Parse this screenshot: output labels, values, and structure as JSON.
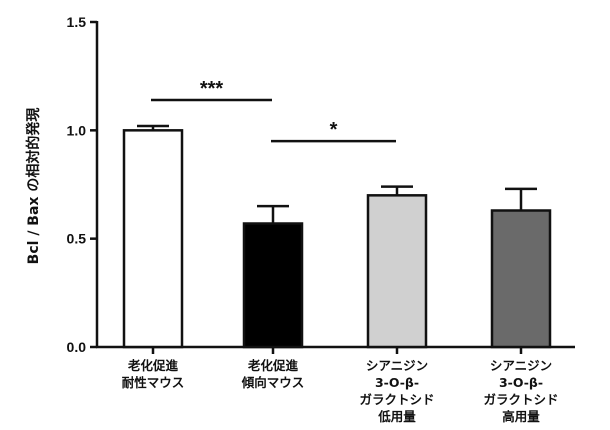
{
  "chart_data": {
    "type": "bar",
    "title": "",
    "xlabel": "",
    "ylabel": "Bcl / Bax の相対的発現",
    "ylim": [
      0,
      1.5
    ],
    "yticks": [
      0.0,
      0.5,
      1.0,
      1.5
    ],
    "ytick_labels": [
      "0.0",
      "0.5",
      "1.0",
      "1.5"
    ],
    "categories": [
      [
        "老化促進",
        "耐性マウス"
      ],
      [
        "老化促進",
        "傾向マウス"
      ],
      [
        "シアニジン",
        "3-O-β-",
        "ガラクトシド",
        "低用量"
      ],
      [
        "シアニジン",
        "3-O-β-",
        "ガラクトシド",
        "高用量"
      ]
    ],
    "values": [
      1.0,
      0.57,
      0.7,
      0.63
    ],
    "errors": [
      0.02,
      0.08,
      0.04,
      0.1
    ],
    "bar_colors": [
      "#ffffff",
      "#000000",
      "#d0d0d0",
      "#6a6a6a"
    ],
    "significance": [
      {
        "from": 0,
        "to": 1,
        "level": 1.14,
        "label": "***"
      },
      {
        "from": 1,
        "to": 2,
        "level": 0.95,
        "label": "*"
      }
    ],
    "grid": false,
    "legend": "none"
  }
}
